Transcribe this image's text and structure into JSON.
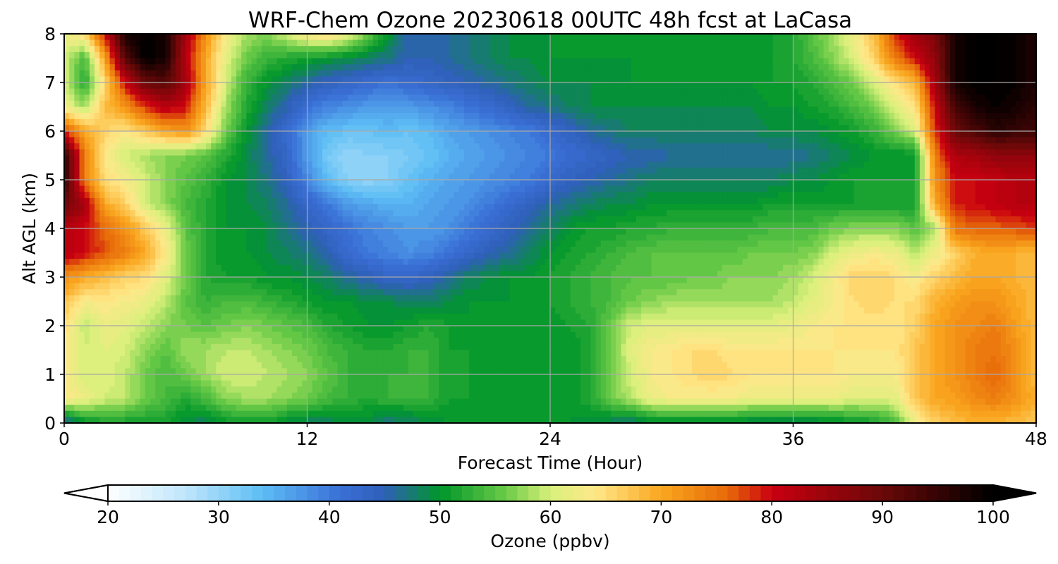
{
  "chart_data": {
    "type": "heatmap",
    "title": "WRF-Chem Ozone  20230618 00UTC 48h fcst at LaCasa",
    "xlabel": "Forecast Time (Hour)",
    "ylabel": "Alt AGL (km)",
    "xlim": [
      0,
      48
    ],
    "ylim": [
      0,
      8
    ],
    "xticks": [
      0,
      12,
      24,
      36,
      48
    ],
    "yticks": [
      0,
      1,
      2,
      3,
      4,
      5,
      6,
      7,
      8
    ],
    "grid": true,
    "x": [
      0,
      1,
      2,
      3,
      4,
      5,
      6,
      7,
      8,
      9,
      10,
      11,
      12,
      13,
      14,
      15,
      16,
      17,
      18,
      19,
      20,
      21,
      22,
      23,
      24,
      25,
      26,
      27,
      28,
      29,
      30,
      31,
      32,
      33,
      34,
      35,
      36,
      37,
      38,
      39,
      40,
      41,
      42,
      43,
      44,
      45,
      46,
      47,
      48
    ],
    "y": [
      0,
      0.5,
      1,
      1.5,
      2,
      2.5,
      3,
      3.5,
      4,
      4.5,
      5,
      5.5,
      6,
      6.5,
      7,
      7.5,
      8
    ],
    "z": [
      [
        44,
        50,
        51,
        51,
        51,
        51,
        49,
        48,
        50,
        51,
        51,
        49,
        48,
        48,
        49,
        49,
        47,
        48,
        49,
        50,
        50,
        50,
        50,
        50,
        50,
        50,
        49,
        48,
        47,
        49,
        49,
        49,
        49,
        49,
        48,
        48,
        48,
        48,
        49,
        50,
        51,
        54,
        62,
        66,
        68,
        69,
        69,
        68,
        67
      ],
      [
        64,
        62,
        60,
        59,
        56,
        54,
        52,
        54,
        57,
        58,
        58,
        57,
        56,
        54,
        53,
        52,
        53,
        53,
        53,
        51,
        51,
        50,
        50,
        50,
        50,
        50,
        52,
        56,
        59,
        62,
        63,
        63,
        63,
        63,
        62,
        62,
        62,
        62,
        62,
        61,
        61,
        61,
        67,
        70,
        71,
        73,
        74,
        72,
        69
      ],
      [
        64,
        60,
        61,
        59,
        56,
        54,
        56,
        58,
        60,
        60,
        59,
        58,
        57,
        55,
        53,
        52,
        53,
        53,
        53,
        51,
        51,
        50,
        50,
        50,
        50,
        50,
        52,
        56,
        60,
        63,
        64,
        65,
        66,
        65,
        64,
        64,
        64,
        64,
        64,
        63,
        63,
        63,
        67,
        70,
        72,
        74,
        76,
        72,
        68
      ],
      [
        64,
        60,
        61,
        60,
        57,
        55,
        58,
        58,
        59,
        59,
        58,
        57,
        56,
        54,
        53,
        52,
        52,
        53,
        53,
        51,
        51,
        50,
        50,
        50,
        50,
        50,
        52,
        56,
        61,
        63,
        64,
        65,
        65,
        64,
        64,
        64,
        64,
        64,
        64,
        64,
        64,
        64,
        67,
        70,
        72,
        74,
        75,
        72,
        68
      ],
      [
        65,
        59,
        62,
        61,
        59,
        57,
        56,
        55,
        56,
        57,
        56,
        55,
        54,
        52,
        51,
        50,
        50,
        51,
        52,
        51,
        50,
        50,
        50,
        50,
        50,
        51,
        52,
        56,
        60,
        61,
        61,
        61,
        61,
        61,
        61,
        61,
        62,
        63,
        64,
        64,
        64,
        64,
        66,
        70,
        72,
        73,
        74,
        71,
        68
      ],
      [
        68,
        63,
        64,
        63,
        62,
        59,
        55,
        53,
        54,
        54,
        53,
        52,
        51,
        50,
        50,
        49,
        49,
        48,
        48,
        49,
        50,
        50,
        50,
        50,
        51,
        52,
        53,
        54,
        56,
        57,
        58,
        58,
        58,
        58,
        58,
        58,
        59,
        61,
        63,
        65,
        66,
        65,
        65,
        69,
        71,
        72,
        72,
        70,
        68
      ],
      [
        72,
        70,
        68,
        66,
        65,
        61,
        56,
        52,
        51,
        51,
        50,
        50,
        49,
        48,
        46,
        45,
        43,
        43,
        44,
        46,
        48,
        49,
        50,
        50,
        51,
        52,
        53,
        54,
        55,
        55,
        55,
        56,
        56,
        57,
        57,
        57,
        58,
        60,
        63,
        66,
        66,
        65,
        63,
        66,
        68,
        70,
        70,
        69,
        68
      ],
      [
        82,
        80,
        77,
        74,
        70,
        64,
        56,
        52,
        50,
        50,
        49,
        48,
        47,
        45,
        42,
        40,
        39,
        38,
        39,
        41,
        43,
        45,
        46,
        48,
        50,
        51,
        52,
        53,
        54,
        55,
        55,
        55,
        55,
        55,
        56,
        56,
        56,
        57,
        60,
        62,
        63,
        62,
        59,
        62,
        66,
        69,
        70,
        69,
        68
      ],
      [
        82,
        80,
        76,
        72,
        67,
        62,
        55,
        52,
        50,
        50,
        49,
        47,
        45,
        43,
        41,
        39,
        38,
        37,
        37,
        38,
        40,
        42,
        44,
        46,
        48,
        50,
        51,
        51,
        52,
        52,
        53,
        53,
        53,
        53,
        53,
        54,
        54,
        54,
        56,
        57,
        57,
        57,
        55,
        58,
        75,
        76,
        76,
        77,
        78
      ],
      [
        90,
        84,
        70,
        66,
        60,
        57,
        54,
        52,
        50,
        49,
        48,
        46,
        43,
        40,
        37,
        36,
        35,
        35,
        36,
        37,
        38,
        40,
        42,
        44,
        46,
        47,
        48,
        49,
        49,
        50,
        50,
        50,
        50,
        50,
        50,
        51,
        51,
        51,
        51,
        51,
        51,
        51,
        51,
        70,
        79,
        80,
        81,
        82,
        82
      ],
      [
        96,
        74,
        65,
        63,
        60,
        57,
        55,
        53,
        50,
        49,
        47,
        44,
        39,
        34,
        31,
        30,
        31,
        33,
        35,
        36,
        37,
        38,
        39,
        40,
        42,
        44,
        45,
        46,
        47,
        48,
        48,
        48,
        48,
        48,
        48,
        48,
        49,
        49,
        50,
        51,
        51,
        51,
        51,
        72,
        80,
        80,
        81,
        82,
        82
      ],
      [
        96,
        74,
        64,
        60,
        58,
        57,
        56,
        55,
        52,
        49,
        46,
        43,
        37,
        32,
        30,
        31,
        31,
        32,
        33,
        35,
        36,
        37,
        38,
        39,
        40,
        42,
        43,
        44,
        45,
        45,
        46,
        46,
        46,
        46,
        46,
        46,
        46,
        47,
        48,
        49,
        50,
        50,
        50,
        74,
        83,
        84,
        86,
        86,
        86
      ],
      [
        78,
        70,
        66,
        64,
        67,
        70,
        72,
        65,
        56,
        50,
        46,
        42,
        37,
        34,
        33,
        33,
        34,
        33,
        34,
        36,
        37,
        38,
        39,
        40,
        42,
        44,
        46,
        47,
        48,
        48,
        48,
        48,
        48,
        48,
        48,
        49,
        49,
        49,
        50,
        51,
        53,
        56,
        60,
        78,
        90,
        93,
        96,
        95,
        94
      ],
      [
        62,
        58,
        68,
        72,
        78,
        82,
        80,
        68,
        58,
        52,
        48,
        45,
        41,
        39,
        38,
        37,
        37,
        37,
        38,
        39,
        41,
        42,
        44,
        46,
        47,
        48,
        49,
        49,
        49,
        49,
        49,
        49,
        49,
        49,
        49,
        50,
        50,
        51,
        52,
        54,
        56,
        60,
        64,
        80,
        94,
        98,
        99,
        98,
        96
      ],
      [
        60,
        52,
        65,
        80,
        90,
        92,
        84,
        70,
        60,
        53,
        50,
        48,
        46,
        44,
        43,
        42,
        41,
        42,
        43,
        44,
        45,
        46,
        47,
        48,
        49,
        49,
        49,
        49,
        50,
        50,
        50,
        50,
        50,
        50,
        50,
        51,
        51,
        52,
        54,
        56,
        60,
        65,
        68,
        84,
        98,
        100,
        100,
        99,
        97
      ],
      [
        60,
        54,
        70,
        92,
        100,
        98,
        82,
        70,
        61,
        56,
        53,
        52,
        51,
        50,
        49,
        48,
        47,
        45,
        45,
        46,
        47,
        48,
        49,
        49,
        50,
        50,
        50,
        50,
        50,
        50,
        50,
        50,
        50,
        50,
        50,
        51,
        52,
        54,
        57,
        61,
        66,
        74,
        80,
        86,
        98,
        100,
        100,
        99,
        97
      ],
      [
        62,
        65,
        80,
        98,
        100,
        98,
        84,
        72,
        63,
        58,
        57,
        60,
        64,
        66,
        62,
        56,
        50,
        45,
        45,
        46,
        47,
        48,
        49,
        49,
        50,
        50,
        50,
        50,
        50,
        50,
        50,
        50,
        50,
        50,
        50,
        51,
        52,
        55,
        58,
        62,
        68,
        78,
        85,
        88,
        98,
        100,
        100,
        99,
        97
      ]
    ],
    "colorbar": {
      "label": "Ozone  (ppbv)",
      "min": 20,
      "max": 100,
      "step": 1,
      "ticks": [
        20,
        30,
        40,
        50,
        60,
        70,
        80,
        90,
        100
      ],
      "extend": "both",
      "orientation": "horizontal",
      "colors": {
        "stops": [
          20,
          27,
          34,
          41,
          45,
          50,
          56,
          60,
          64,
          70,
          76,
          80,
          90,
          100
        ],
        "hex": [
          "#ffffff",
          "#bfe6fb",
          "#5cbdf5",
          "#3a6fd6",
          "#2f5fb8",
          "#00962a",
          "#6ccb48",
          "#d8f07a",
          "#ffe88a",
          "#f9a71f",
          "#e86a09",
          "#c90010",
          "#6a0808",
          "#000000"
        ]
      }
    }
  }
}
